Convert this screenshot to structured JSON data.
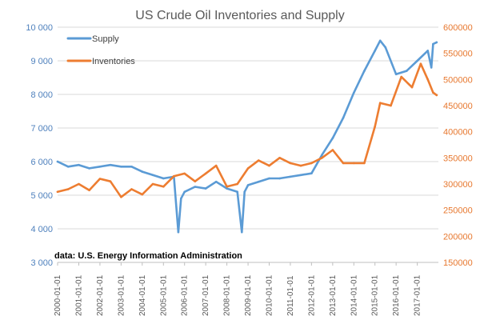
{
  "chart_data": {
    "type": "line",
    "title": "US Crude Oil Inventories and Supply",
    "source_note": "data: U.S. Energy Information Administration",
    "grid": true,
    "legend_placement": "top-left",
    "colors": {
      "supply": "#5b9bd5",
      "inventories": "#ed7d31",
      "grid": "#d9d9d9",
      "text": "#595959"
    },
    "x_axis": {
      "tick_labels": [
        "2000-01-01",
        "2001-01-01",
        "2002-01-01",
        "2003-01-01",
        "2004-01-01",
        "2005-01-01",
        "2006-01-01",
        "2007-01-01",
        "2008-01-01",
        "2009-01-01",
        "2010-01-01",
        "2011-01-01",
        "2012-01-01",
        "2013-01-01",
        "2014-01-01",
        "2015-01-01",
        "2016-01-01",
        "2017-01-01"
      ],
      "range": [
        "2000-01-01",
        "2017-12-31"
      ]
    },
    "y_axis_left": {
      "ticks": [
        3000,
        4000,
        5000,
        6000,
        7000,
        8000,
        9000,
        10000
      ],
      "tick_labels": [
        "3 000",
        "4 000",
        "5 000",
        "6 000",
        "7 000",
        "8 000",
        "9 000",
        "10 000"
      ],
      "range": [
        3000,
        10000
      ],
      "series": "Supply"
    },
    "y_axis_right": {
      "ticks": [
        150000,
        200000,
        250000,
        300000,
        350000,
        400000,
        450000,
        500000,
        550000,
        600000
      ],
      "tick_labels": [
        "150000",
        "200000",
        "250000",
        "300000",
        "350000",
        "400000",
        "450000",
        "500000",
        "550000",
        "600000"
      ],
      "range": [
        150000,
        600000
      ],
      "series": "Inventories"
    },
    "series": [
      {
        "name": "Supply",
        "axis": "left",
        "x": [
          "2000-01-01",
          "2000-07-01",
          "2001-01-01",
          "2001-07-01",
          "2002-01-01",
          "2002-07-01",
          "2003-01-01",
          "2003-07-01",
          "2004-01-01",
          "2004-07-01",
          "2005-01-01",
          "2005-07-01",
          "2005-09-15",
          "2005-11-01",
          "2006-01-01",
          "2006-07-01",
          "2007-01-01",
          "2007-07-01",
          "2008-01-01",
          "2008-07-01",
          "2008-09-15",
          "2008-11-01",
          "2009-01-01",
          "2009-07-01",
          "2010-01-01",
          "2010-07-01",
          "2011-01-01",
          "2011-07-01",
          "2012-01-01",
          "2012-07-01",
          "2013-01-01",
          "2013-07-01",
          "2014-01-01",
          "2014-07-01",
          "2015-01-01",
          "2015-04-01",
          "2015-07-01",
          "2016-01-01",
          "2016-07-01",
          "2017-01-01",
          "2017-07-01",
          "2017-09-01",
          "2017-10-01",
          "2017-12-01"
        ],
        "y": [
          6000,
          5850,
          5900,
          5800,
          5850,
          5900,
          5850,
          5850,
          5700,
          5600,
          5500,
          5550,
          3900,
          4900,
          5100,
          5250,
          5200,
          5400,
          5200,
          5100,
          3900,
          5100,
          5300,
          5400,
          5500,
          5500,
          5550,
          5600,
          5650,
          6200,
          6700,
          7300,
          8050,
          8700,
          9300,
          9600,
          9400,
          8600,
          8700,
          9000,
          9300,
          8800,
          9500,
          9550
        ]
      },
      {
        "name": "Inventories",
        "axis": "right",
        "x": [
          "2000-01-01",
          "2000-07-01",
          "2001-01-01",
          "2001-07-01",
          "2002-01-01",
          "2002-07-01",
          "2003-01-01",
          "2003-07-01",
          "2004-01-01",
          "2004-07-01",
          "2005-01-01",
          "2005-07-01",
          "2006-01-01",
          "2006-07-01",
          "2007-01-01",
          "2007-07-01",
          "2008-01-01",
          "2008-07-01",
          "2009-01-01",
          "2009-07-01",
          "2010-01-01",
          "2010-07-01",
          "2011-01-01",
          "2011-07-01",
          "2012-01-01",
          "2012-07-01",
          "2013-01-01",
          "2013-07-01",
          "2014-01-01",
          "2014-07-01",
          "2015-01-01",
          "2015-04-01",
          "2015-10-01",
          "2016-04-01",
          "2016-10-01",
          "2017-03-01",
          "2017-07-01",
          "2017-10-01",
          "2017-12-01"
        ],
        "y": [
          285000,
          290000,
          300000,
          288000,
          310000,
          305000,
          275000,
          290000,
          280000,
          300000,
          295000,
          315000,
          320000,
          305000,
          320000,
          335000,
          295000,
          300000,
          330000,
          345000,
          335000,
          350000,
          340000,
          335000,
          340000,
          350000,
          365000,
          340000,
          340000,
          340000,
          410000,
          455000,
          450000,
          505000,
          485000,
          530000,
          500000,
          475000,
          470000
        ]
      }
    ]
  },
  "legend": {
    "supply_label": "Supply",
    "inventories_label": "Inventories"
  }
}
